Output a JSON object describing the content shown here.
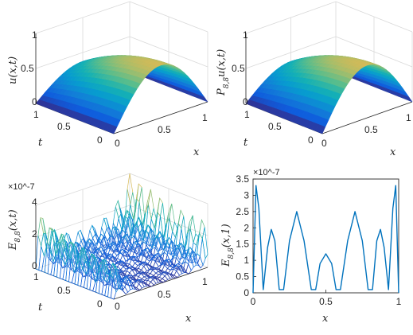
{
  "chart_data": [
    {
      "id": "p1",
      "type": "surface",
      "zlabel": "u(x,t)",
      "xlabel": "x",
      "ylabel": "t",
      "x_ticks": [
        "0",
        "0.5",
        "1"
      ],
      "t_ticks": [
        "0",
        "0.5",
        "1"
      ],
      "z_ticks": [
        "0",
        "0.5",
        "1"
      ],
      "zlim": [
        0,
        1
      ],
      "surface": "u(x,t) ≈ 0.75·sin(πx)·(1 − 0.5t²); grid x,t ∈ [0,1]"
    },
    {
      "id": "p2",
      "type": "surface",
      "zlabel": "P_{8,8}u(x,t)",
      "xlabel": "x",
      "ylabel": "t",
      "x_ticks": [
        "0",
        "0.5",
        "1"
      ],
      "t_ticks": [
        "0",
        "0.5",
        "1"
      ],
      "z_ticks": [
        "0",
        "0.5",
        "1"
      ],
      "zlim": [
        0,
        1
      ],
      "surface": "visually identical to u(x,t)"
    },
    {
      "id": "p3",
      "type": "surface",
      "zlabel": "E_{8,8}(x,t)",
      "xlabel": "x",
      "ylabel": "t",
      "exponent": "×10^-7",
      "x_ticks": [
        "0",
        "0.5",
        "1"
      ],
      "t_ticks": [
        "0",
        "0.5",
        "1"
      ],
      "z_ticks": [
        "0",
        "2",
        "4"
      ],
      "zlim": [
        0,
        4
      ],
      "surface": "oscillatory error surface with 7 humps along x and 7 along t; largest near x=1, t=1"
    },
    {
      "id": "p4",
      "type": "line",
      "ylabel": "E_{8,8}(x,1)",
      "xlabel": "x",
      "exponent": "×10^-7",
      "x_ticks": [
        "0",
        "0.5",
        "1"
      ],
      "y_ticks": [
        "0",
        "0.5",
        "1",
        "1.5",
        "2",
        "2.5",
        "3",
        "3.5"
      ],
      "xlim": [
        0,
        1
      ],
      "ylim": [
        0,
        3.5
      ],
      "series": [
        {
          "x": [
            0,
            0.02,
            0.04,
            0.07,
            0.1,
            0.125,
            0.15,
            0.18,
            0.21,
            0.25,
            0.3,
            0.35,
            0.4,
            0.43,
            0.46,
            0.5,
            0.54,
            0.57,
            0.6,
            0.65,
            0.7,
            0.75,
            0.79,
            0.82,
            0.85,
            0.875,
            0.9,
            0.93,
            0.96,
            0.98,
            1
          ],
          "values": [
            0,
            3.3,
            2.6,
            0.1,
            1.4,
            1.95,
            1.6,
            0.1,
            0.1,
            1.6,
            2.5,
            1.6,
            0.1,
            0.1,
            0.9,
            1.2,
            0.9,
            0.1,
            0.1,
            1.6,
            2.5,
            1.6,
            0.1,
            0.1,
            1.6,
            1.95,
            1.4,
            0.1,
            2.6,
            3.3,
            0
          ]
        }
      ],
      "color": "#0072BD"
    }
  ]
}
